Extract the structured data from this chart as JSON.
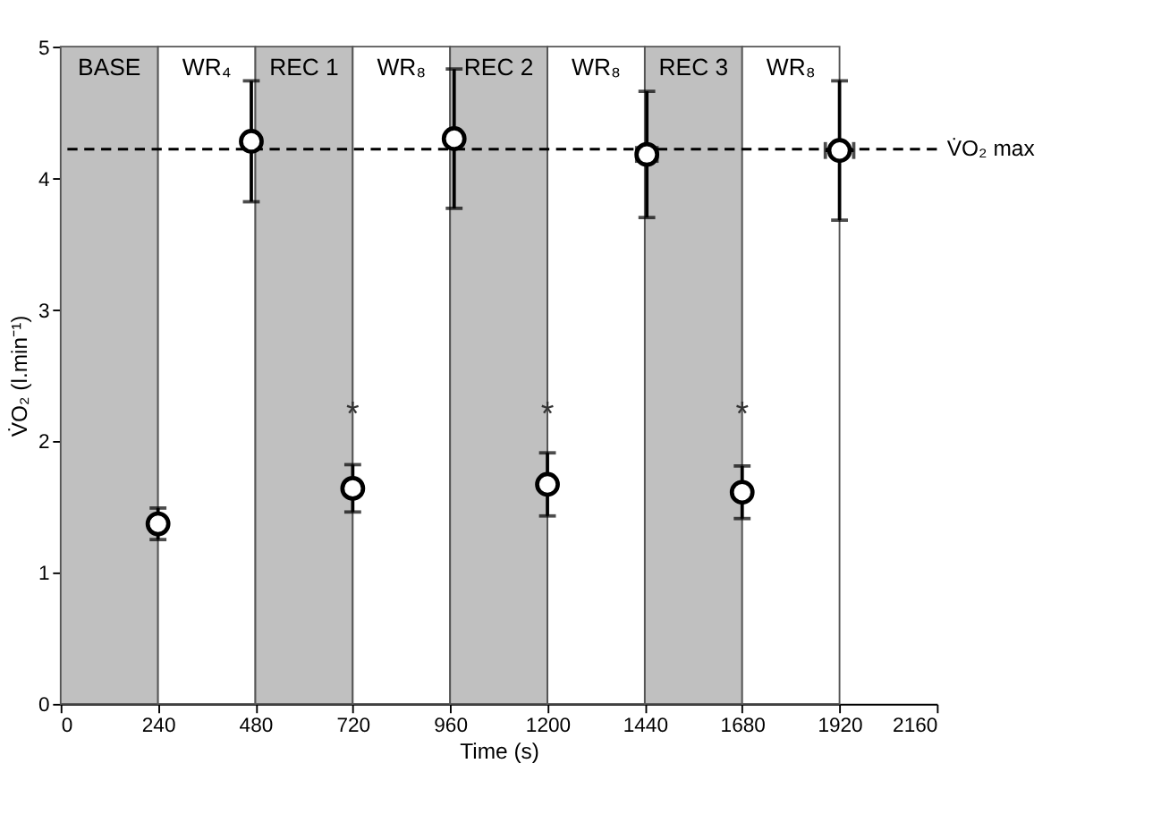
{
  "chart_data": {
    "type": "scatter",
    "xlabel": "Time (s)",
    "ylabel": "V̇O₂ (l.min⁻¹)",
    "series": [
      {
        "color": "#000000",
        "x": [
          240,
          470,
          720,
          970,
          1200,
          1445,
          1680,
          1920
        ],
        "values": [
          1.37,
          4.28,
          1.64,
          4.3,
          1.67,
          4.18,
          1.61,
          4.21
        ],
        "errors": [
          0.12,
          0.46,
          0.18,
          0.53,
          0.24,
          0.48,
          0.2,
          0.53
        ],
        "xerrors": [
          null,
          null,
          null,
          10,
          null,
          25,
          null,
          35
        ]
      }
    ],
    "xlim": [
      0,
      2160
    ],
    "xticks": [
      0,
      240,
      480,
      720,
      960,
      1200,
      1440,
      1680,
      1920,
      2160
    ],
    "ylim": [
      0,
      5
    ],
    "yticks": [
      0,
      1,
      2,
      3,
      4,
      5
    ],
    "bands": [
      {
        "axis": "x",
        "from": 0,
        "to": 240,
        "label": "BASE",
        "color": "#c0c0c0"
      },
      {
        "axis": "x",
        "from": 240,
        "to": 480,
        "label": "WR₄",
        "color": "#ffffff"
      },
      {
        "axis": "x",
        "from": 480,
        "to": 720,
        "label": "REC 1",
        "color": "#c0c0c0"
      },
      {
        "axis": "x",
        "from": 720,
        "to": 960,
        "label": "WR₈",
        "color": "#ffffff"
      },
      {
        "axis": "x",
        "from": 960,
        "to": 1200,
        "label": "REC 2",
        "color": "#c0c0c0"
      },
      {
        "axis": "x",
        "from": 1200,
        "to": 1440,
        "label": "WR₈",
        "color": "#ffffff"
      },
      {
        "axis": "x",
        "from": 1440,
        "to": 1680,
        "label": "REC 3",
        "color": "#c0c0c0"
      },
      {
        "axis": "x",
        "from": 1680,
        "to": 1920,
        "label": "WR₈",
        "color": "#ffffff"
      }
    ],
    "ref_lines": [
      {
        "axis": "y",
        "value": 4.22,
        "label": "V̇O₂ max",
        "line_style": "dashed",
        "color": "#000000"
      }
    ],
    "annotations": [
      {
        "text": "*",
        "x": 720,
        "y": 2.2
      },
      {
        "text": "*",
        "x": 1200,
        "y": 2.2
      },
      {
        "text": "*",
        "x": 1680,
        "y": 2.2
      }
    ],
    "marker": "circle",
    "grid": false
  }
}
